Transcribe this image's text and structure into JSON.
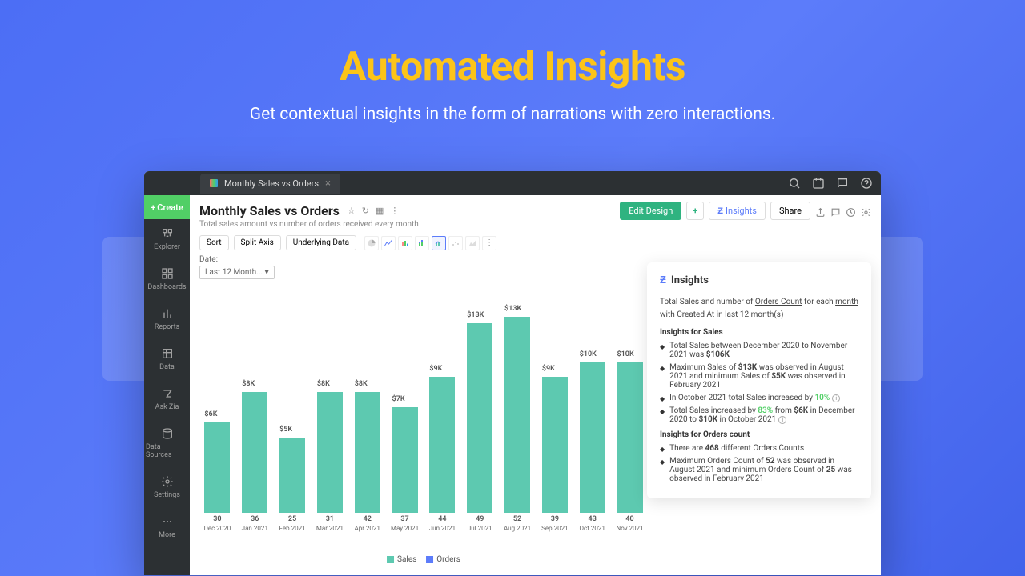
{
  "hero": {
    "title": "Automated Insights",
    "subtitle": "Get contextual insights in the form of narrations with zero interactions."
  },
  "tab": {
    "label": "Monthly Sales vs Orders"
  },
  "sidebar": {
    "create": "Create",
    "items": [
      "Explorer",
      "Dashboards",
      "Reports",
      "Data",
      "Ask Zia",
      "Data Sources",
      "Settings",
      "More"
    ]
  },
  "page": {
    "title": "Monthly Sales vs Orders",
    "subtitle": "Total sales amount vs number of orders received every month"
  },
  "actions": {
    "edit_design": "Edit Design",
    "insights": "Insights",
    "share": "Share"
  },
  "toolbar": {
    "sort": "Sort",
    "split_axis": "Split Axis",
    "underlying_data": "Underlying Data"
  },
  "date": {
    "label": "Date:",
    "value": "Last 12 Month... ▾"
  },
  "chart": {
    "type": "bar",
    "bar_color": "#5dc9b0",
    "orders_color": "#5c7cfa",
    "background": "#ffffff",
    "max_value": 13,
    "categories": [
      "Dec 2020",
      "Jan 2021",
      "Feb 2021",
      "Mar 2021",
      "Apr 2021",
      "May 2021",
      "Jun 2021",
      "Jul 2021",
      "Aug 2021",
      "Sep 2021",
      "Oct 2021",
      "Nov 2021"
    ],
    "sales_labels": [
      "$6K",
      "$8K",
      "$5K",
      "$8K",
      "$8K",
      "$7K",
      "$9K",
      "$13K",
      "$13K",
      "$9K",
      "$10K",
      "$10K"
    ],
    "sales_values": [
      6,
      8,
      5,
      8,
      8,
      7,
      9,
      12.6,
      13,
      9,
      10,
      10
    ],
    "orders": [
      30,
      36,
      25,
      31,
      42,
      37,
      44,
      49,
      52,
      39,
      43,
      40
    ],
    "legend": {
      "sales": "Sales",
      "orders": "Orders"
    }
  },
  "insights": {
    "title": "Insights",
    "intro_1": "Total Sales and number of ",
    "intro_u1": "Orders Count",
    "intro_2": " for each ",
    "intro_u2": "month",
    "intro_3": " with ",
    "intro_u3": "Created At",
    "intro_4": " in ",
    "intro_u4": "last 12 month(s)",
    "section_sales": "Insights for Sales",
    "b1_a": "Total Sales between December 2020 to November 2021 was ",
    "b1_b": "$106K",
    "b2_a": "Maximum Sales of ",
    "b2_b": "$13K",
    "b2_c": " was observed in August 2021 and minimum Sales of ",
    "b2_d": "$5K",
    "b2_e": " was observed in February 2021",
    "b3_a": "In October 2021 total Sales increased by ",
    "b3_pct": "10%",
    "b4_a": "Total Sales increased by ",
    "b4_pct": "83%",
    "b4_b": " from ",
    "b4_c": "$6K",
    "b4_d": " in December 2020 to ",
    "b4_e": "$10K",
    "b4_f": " in October 2021",
    "section_orders": "Insights for Orders count",
    "b5_a": "There are ",
    "b5_b": "468",
    "b5_c": " different Orders Counts",
    "b6_a": "Maximum Orders Count of ",
    "b6_b": "52",
    "b6_c": " was observed in August 2021 and minimum Orders Count of ",
    "b6_d": "25",
    "b6_e": " was observed in February 2021"
  }
}
